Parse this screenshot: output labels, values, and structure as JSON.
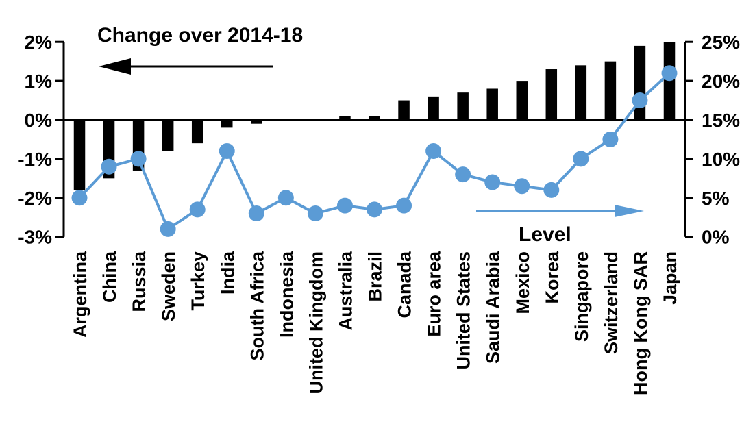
{
  "chart_data": {
    "type": "combo-bar-line",
    "annotations": {
      "bar_series_label": "Change over 2014-18",
      "line_series_label": "Level"
    },
    "categories": [
      "Argentina",
      "China",
      "Russia",
      "Sweden",
      "Turkey",
      "India",
      "South Africa",
      "Indonesia",
      "United Kingdom",
      "Australia",
      "Brazil",
      "Canada",
      "Euro area",
      "United States",
      "Saudi Arabia",
      "Mexico",
      "Korea",
      "Singapore",
      "Switzerland",
      "Hong Kong SAR",
      "Japan"
    ],
    "series": [
      {
        "name": "Change over 2014-18",
        "type": "bar",
        "axis": "left",
        "color": "#000000",
        "values": [
          -1.8,
          -1.5,
          -1.3,
          -0.8,
          -0.6,
          -0.2,
          -0.1,
          0,
          0,
          0.1,
          0.1,
          0.5,
          0.6,
          0.7,
          0.8,
          1.0,
          1.3,
          1.4,
          1.5,
          1.9,
          2.0
        ]
      },
      {
        "name": "Level",
        "type": "line",
        "axis": "right",
        "color": "#5B9BD5",
        "values": [
          5,
          9,
          10,
          1,
          3.5,
          11,
          3,
          5,
          3,
          4,
          3.5,
          4,
          11,
          8,
          7,
          6.5,
          6,
          10,
          12.5,
          17.5,
          21
        ]
      }
    ],
    "left_axis": {
      "tick_labels": [
        "2%",
        "1%",
        "0%",
        "-1%",
        "-2%",
        "-3%"
      ],
      "tick_values": [
        2,
        1,
        0,
        -1,
        -2,
        -3
      ],
      "range": [
        -3,
        2
      ]
    },
    "right_axis": {
      "tick_labels": [
        "25%",
        "20%",
        "15%",
        "10%",
        "5%",
        "0%"
      ],
      "tick_values": [
        25,
        20,
        15,
        10,
        5,
        0
      ],
      "range": [
        0,
        25
      ]
    },
    "grid": false,
    "baseline_alignment": "left 0% equals right 15%",
    "arrows": [
      {
        "name": "bar-series-arrow",
        "direction": "left",
        "color": "#000000"
      },
      {
        "name": "line-series-arrow",
        "direction": "right",
        "color": "#5B9BD5"
      }
    ]
  },
  "colors": {
    "background": "#FFFFFF",
    "bar": "#000000",
    "line": "#5B9BD5",
    "text": "#000000"
  }
}
